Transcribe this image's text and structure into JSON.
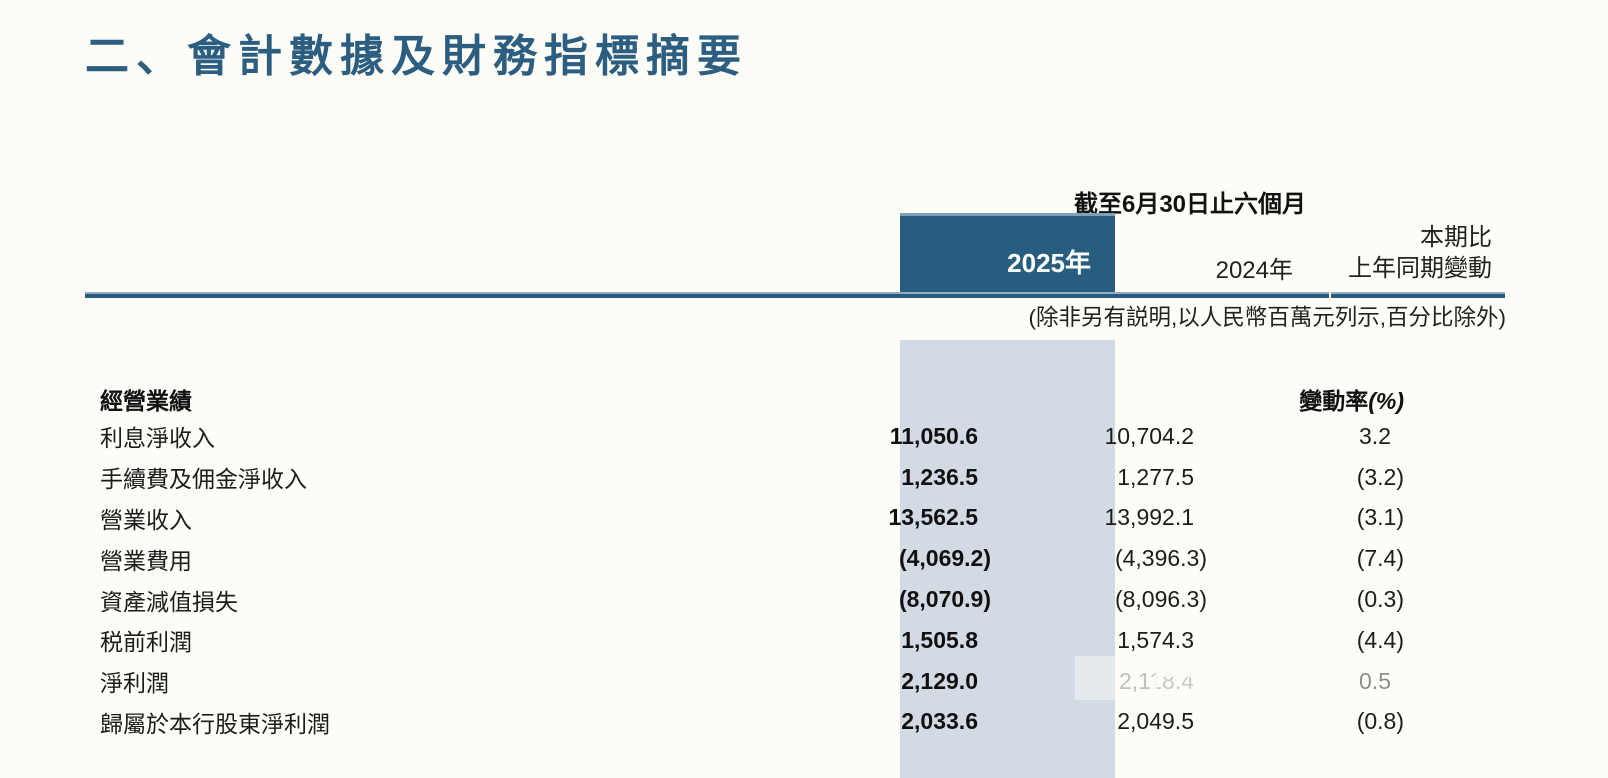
{
  "page": {
    "title": "二、會計數據及財務指標摘要",
    "period_header": "截至6月30日止六個月",
    "unit_note": "(除非另有説明,以人民幣百萬元列示,百分比除外)",
    "columns": {
      "col_2025": "2025年",
      "col_2024": "2024年",
      "col_change_line1": "本期比",
      "col_change_line2": "上年同期變動"
    },
    "section": {
      "label": "經營業績",
      "change_rate_label": "變動率",
      "change_rate_suffix": "(%)"
    },
    "rows": [
      {
        "label": "利息淨收入",
        "v2025": "11,050.6",
        "v2024": "10,704.2",
        "change": "3.2"
      },
      {
        "label": "手續費及佣金淨收入",
        "v2025": "1,236.5",
        "v2024": "1,277.5",
        "change": "(3.2)"
      },
      {
        "label": "營業收入",
        "v2025": "13,562.5",
        "v2024": "13,992.1",
        "change": "(3.1)"
      },
      {
        "label": "營業費用",
        "v2025": "(4,069.2)",
        "v2024": "(4,396.3)",
        "change": "(7.4)"
      },
      {
        "label": "資產減值損失",
        "v2025": "(8,070.9)",
        "v2024": "(8,096.3)",
        "change": "(0.3)"
      },
      {
        "label": "税前利潤",
        "v2025": "1,505.8",
        "v2024": "1,574.3",
        "change": "(4.4)"
      },
      {
        "label": "淨利潤",
        "v2025": "2,129.0",
        "v2024": "2,118.4",
        "change": "0.5"
      },
      {
        "label": "歸屬於本行股東淨利潤",
        "v2025": "2,033.6",
        "v2024": "2,049.5",
        "change": "(0.8)"
      }
    ],
    "colors": {
      "accent": "#275E80",
      "highlight_band": "#D2DBE3",
      "background": "#FDFCF7",
      "title_color": "#2B5E80"
    }
  }
}
